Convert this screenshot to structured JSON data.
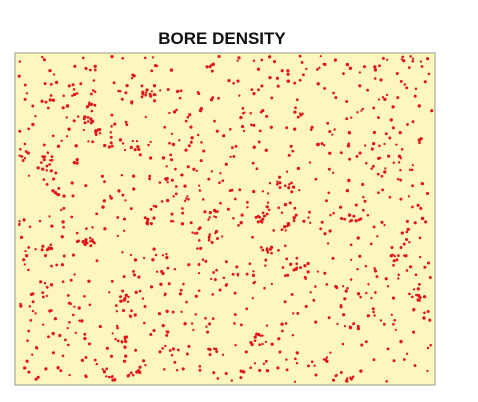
{
  "header": {
    "title": "BORE DENSITY"
  }
}
